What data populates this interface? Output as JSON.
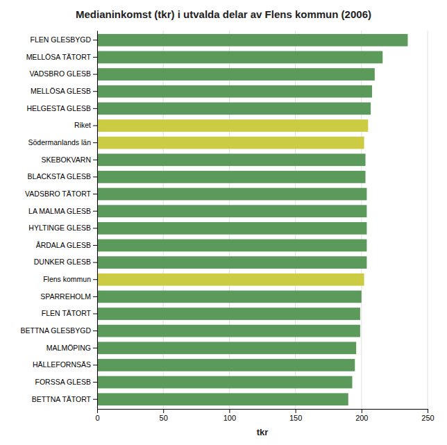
{
  "chart_data": {
    "type": "bar",
    "orientation": "horizontal",
    "title": "Medianinkomst (tkr) i utvalda delar av Flens kommun (2006)",
    "xlabel": "tkr",
    "categories": [
      "FLEN GLESBYGD",
      "MELLÖSA TÄTORT",
      "VADSBRO GLESB",
      "MELLÖSA GLESB",
      "HELGESTA GLESB",
      "Riket",
      "Södermanlands län",
      "SKEBOKVARN",
      "BLACKSTA GLESB",
      "VADSBRO TÄTORT",
      "LA MALMA GLESB",
      "HYLTINGE GLESB",
      "ÅRDALA GLESB",
      "DUNKER GLESB",
      "Flens kommun",
      "SPARREHOLM",
      "FLEN TÄTORT",
      "BETTNA GLESBYGD",
      "MALMÖPING",
      "HÄLLEFORNSÄS",
      "FORSSA GLESB",
      "BETTNA TÄTORT"
    ],
    "values": [
      235,
      216,
      210,
      208,
      207,
      205,
      202,
      203,
      203,
      204,
      204,
      204,
      204,
      204,
      202,
      200,
      199,
      199,
      196,
      195,
      193,
      190
    ],
    "colors": [
      "#5b9a5b",
      "#5b9a5b",
      "#5b9a5b",
      "#5b9a5b",
      "#5b9a5b",
      "#cccc44",
      "#cccc44",
      "#5b9a5b",
      "#5b9a5b",
      "#5b9a5b",
      "#5b9a5b",
      "#5b9a5b",
      "#5b9a5b",
      "#5b9a5b",
      "#cccc44",
      "#5b9a5b",
      "#5b9a5b",
      "#5b9a5b",
      "#5b9a5b",
      "#5b9a5b",
      "#5b9a5b",
      "#5b9a5b"
    ],
    "xlim": [
      0,
      250
    ],
    "xticks": [
      0,
      50,
      100,
      150,
      200,
      250
    ],
    "grid": true
  }
}
